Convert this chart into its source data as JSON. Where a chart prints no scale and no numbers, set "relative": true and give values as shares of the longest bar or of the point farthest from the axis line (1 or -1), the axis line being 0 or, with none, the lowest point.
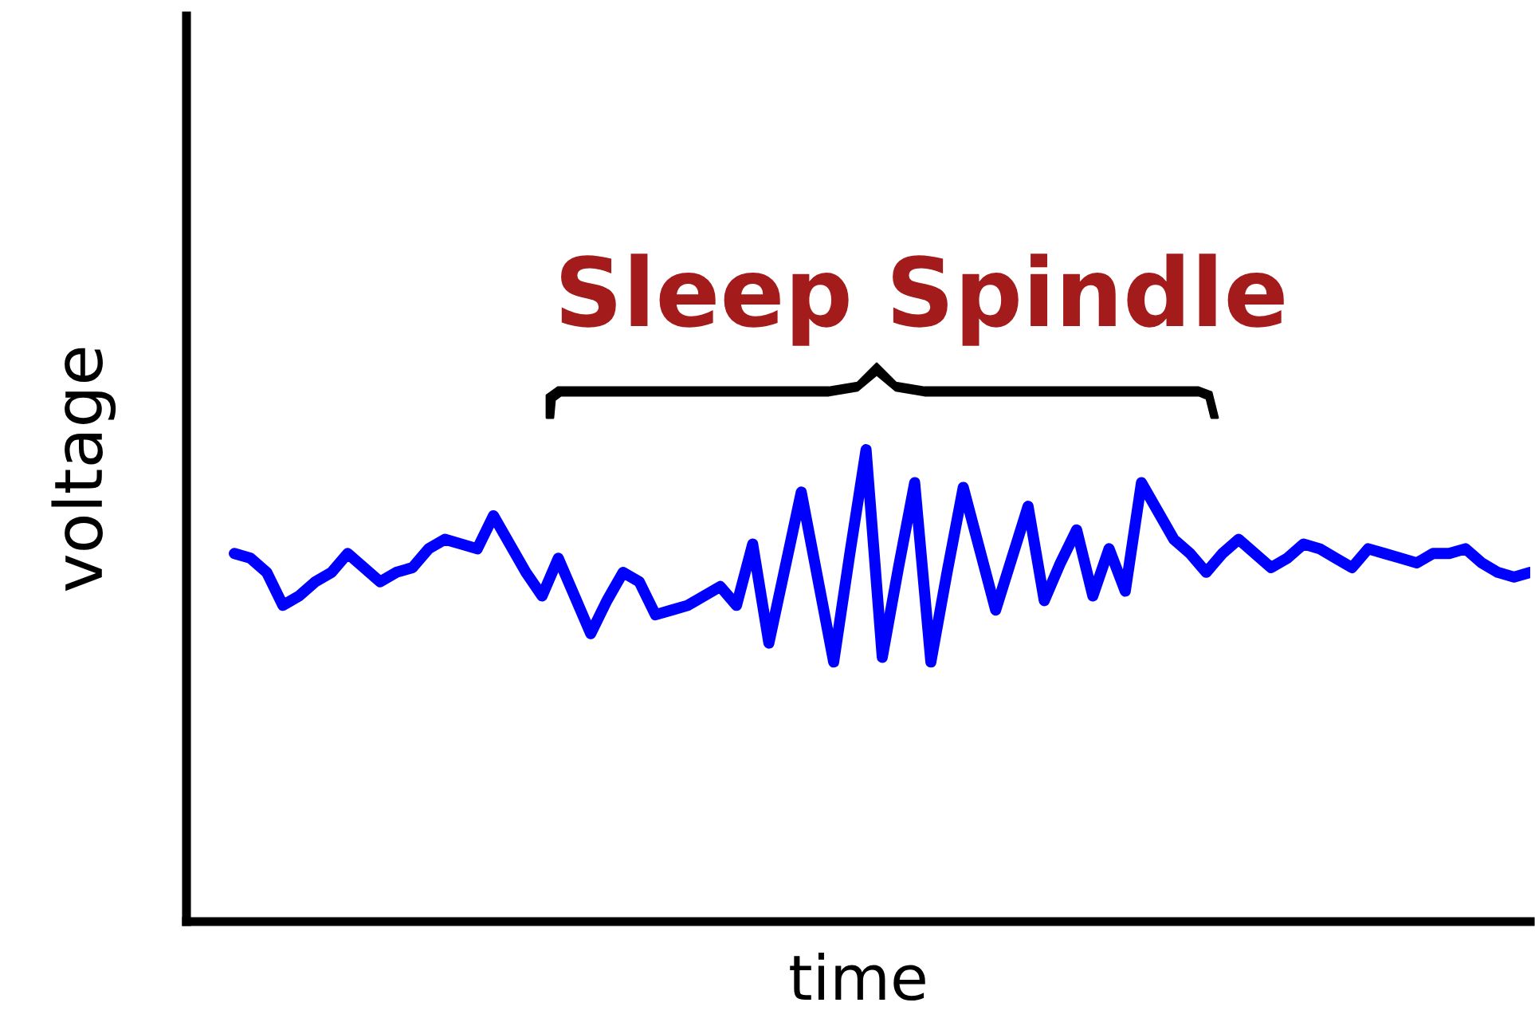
{
  "chart_data": {
    "type": "line",
    "relative": true,
    "xlabel": "time",
    "ylabel": "voltage",
    "annotations": [
      "Sleep Spindle"
    ],
    "categories": [
      null,
      null,
      null,
      null,
      null,
      null,
      null,
      null,
      null,
      null,
      null,
      null,
      null,
      null,
      null,
      null,
      null,
      null,
      null,
      null,
      null,
      null,
      null,
      null,
      null,
      null,
      null,
      null,
      null,
      null,
      null,
      null,
      null,
      null,
      null,
      null,
      null,
      null,
      null,
      null,
      null,
      null,
      null,
      null,
      null,
      null,
      null,
      null,
      null,
      null,
      null,
      null,
      null,
      null,
      null,
      null,
      null,
      null,
      null,
      null,
      null,
      null,
      null,
      null,
      null,
      null,
      null,
      null,
      null,
      null,
      null,
      null,
      null,
      null,
      null,
      null,
      null,
      null,
      null,
      null,
      null
    ],
    "series": [
      {
        "color": "#0000ff",
        "values": [
          0.78,
          0.77,
          0.74,
          0.67,
          0.69,
          0.72,
          0.74,
          0.78,
          0.75,
          0.72,
          0.74,
          0.75,
          0.79,
          0.81,
          0.8,
          0.79,
          0.86,
          0.8,
          0.74,
          0.69,
          0.77,
          0.69,
          0.61,
          0.68,
          0.74,
          0.72,
          0.65,
          0.66,
          0.67,
          0.69,
          0.71,
          0.67,
          0.8,
          0.59,
          0.75,
          0.91,
          0.73,
          0.55,
          0.78,
          1,
          0.56,
          0.75,
          0.93,
          0.55,
          0.74,
          0.92,
          0.79,
          0.66,
          0.77,
          0.88,
          0.68,
          0.76,
          0.83,
          0.69,
          0.79,
          0.7,
          0.93,
          0.87,
          0.81,
          0.78,
          0.74,
          0.78,
          0.81,
          0.78,
          0.75,
          0.77,
          0.8,
          0.79,
          0.77,
          0.75,
          0.79,
          0.78,
          0.77,
          0.76,
          0.78,
          0.78,
          0.79,
          0.76,
          0.74,
          0.73,
          0.74
        ]
      }
    ],
    "marker": "none",
    "line_style": "solid"
  }
}
